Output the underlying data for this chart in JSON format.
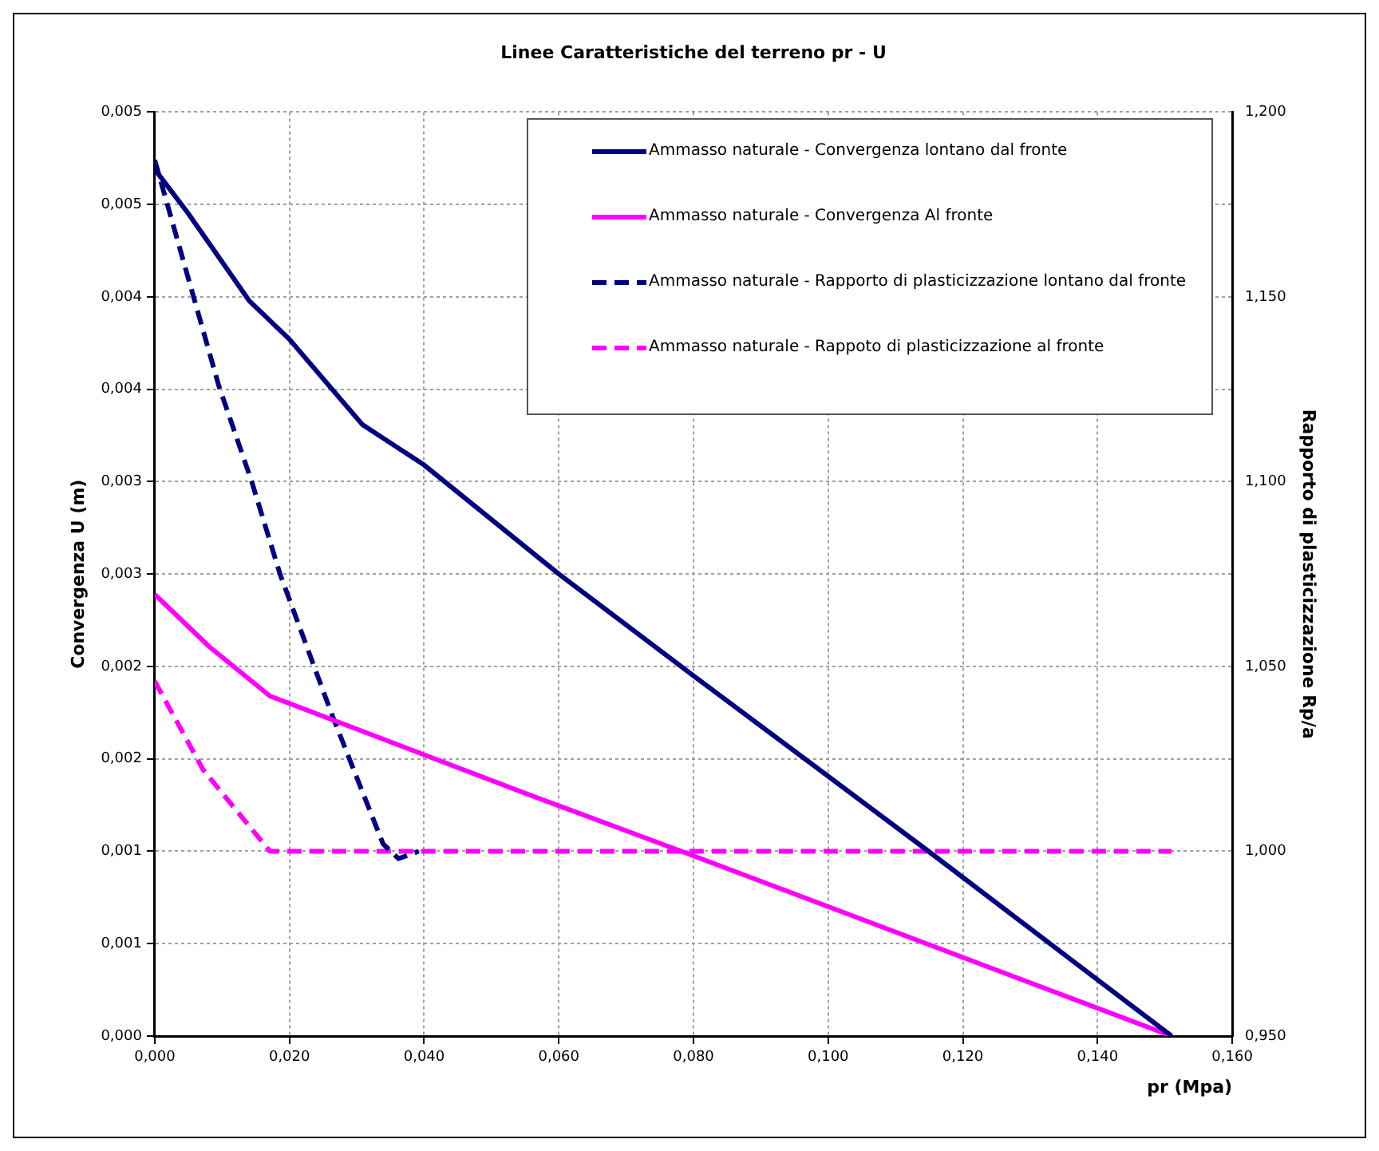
{
  "chart_data": {
    "type": "line",
    "title": "Linee Caratteristiche del terreno pr - U",
    "xlabel": "pr (Mpa)",
    "ylabel": "Convergenza U (m)",
    "y2label": "Rapporto di plasticizzazione Rp/a",
    "xlim": [
      0,
      0.16
    ],
    "xticks": [
      {
        "value": 0,
        "label": "0,000"
      },
      {
        "value": 0.02,
        "label": "0,020"
      },
      {
        "value": 0.04,
        "label": "0,040"
      },
      {
        "value": 0.06,
        "label": "0,060"
      },
      {
        "value": 0.08,
        "label": "0,080"
      },
      {
        "value": 0.1,
        "label": "0,100"
      },
      {
        "value": 0.12,
        "label": "0,120"
      },
      {
        "value": 0.14,
        "label": "0,140"
      },
      {
        "value": 0.16,
        "label": "0,160"
      }
    ],
    "ylim": [
      0,
      0.005
    ],
    "yticks": [
      {
        "value": 0,
        "label": "0,000"
      },
      {
        "value": 0.0005,
        "label": "0,001"
      },
      {
        "value": 0.001,
        "label": "0,001"
      },
      {
        "value": 0.0015,
        "label": "0,002"
      },
      {
        "value": 0.002,
        "label": "0,002"
      },
      {
        "value": 0.0025,
        "label": "0,003"
      },
      {
        "value": 0.003,
        "label": "0,003"
      },
      {
        "value": 0.0035,
        "label": "0,004"
      },
      {
        "value": 0.004,
        "label": "0,004"
      },
      {
        "value": 0.0045,
        "label": "0,005"
      },
      {
        "value": 0.005,
        "label": "0,005"
      }
    ],
    "y2lim": [
      0.95,
      1.2
    ],
    "y2ticks": [
      {
        "value": 0.95,
        "label": "0,950"
      },
      {
        "value": 1.0,
        "label": "1,000"
      },
      {
        "value": 1.05,
        "label": "1,050"
      },
      {
        "value": 1.1,
        "label": "1,100"
      },
      {
        "value": 1.15,
        "label": "1,150"
      },
      {
        "value": 1.2,
        "label": "1,200"
      }
    ],
    "grid": true,
    "legend": "top right",
    "marker": "none",
    "series": [
      {
        "name": "Ammasso naturale - Convergenza lontano dal fronte",
        "color": "#000080",
        "line_style": "solid",
        "x": [
          0,
          0.005,
          0.014,
          0.02,
          0.0308,
          0.04,
          0.06,
          0.08,
          0.1149,
          0.151
        ],
        "values": [
          0.00469,
          0.00445,
          0.00398,
          0.00377,
          0.00331,
          0.00309,
          0.0025,
          0.00195,
          0.001,
          0
        ]
      },
      {
        "name": "Ammasso naturale - Convergenza Al fronte",
        "color": "#ff00ff",
        "line_style": "solid",
        "x": [
          0,
          0.008,
          0.0171,
          0.0553,
          0.0782,
          0.151
        ],
        "values": [
          0.00239,
          0.00211,
          0.00184,
          0.00131,
          0.001,
          0
        ]
      },
      {
        "name": "Ammasso naturale - Rapporto di plasticizzazione lontano dal fronte",
        "color": "#000080",
        "line_style": "dashed",
        "axis": "y2",
        "x": [
          0,
          0.0095,
          0.0144,
          0.0186,
          0.0263,
          0.0339,
          0.0362,
          0.0392
        ],
        "values": [
          1.187,
          1.126,
          1.1,
          1.075,
          1.037,
          1.002,
          0.998,
          1.0
        ]
      },
      {
        "name": "Ammasso naturale - Rappoto di plasticizzazione al fronte",
        "color": "#ff00ff",
        "line_style": "dashed",
        "axis": "y2",
        "x": [
          0,
          0.0072,
          0.0171,
          0.151
        ],
        "values": [
          1.046,
          1.022,
          1.0,
          1.0
        ]
      }
    ]
  }
}
